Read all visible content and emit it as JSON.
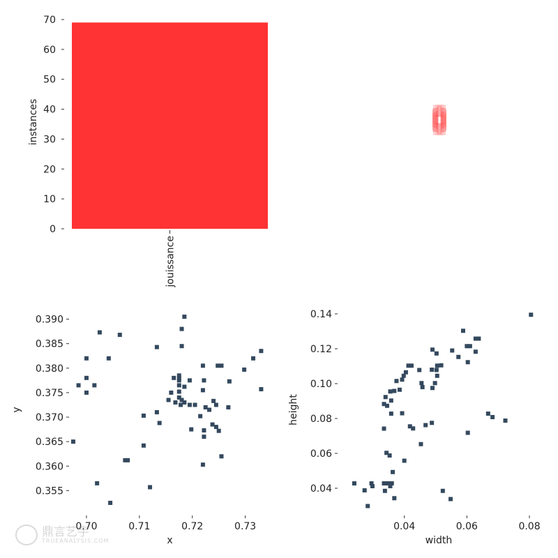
{
  "chart_data": [
    {
      "type": "bar",
      "categories": [
        "jouissance"
      ],
      "values": [
        69
      ],
      "xlabel": "",
      "ylabel": "instances",
      "ylim": [
        0,
        70
      ],
      "yticks": [
        "0",
        "10",
        "20",
        "30",
        "40",
        "50",
        "60",
        "70"
      ],
      "color": "#ff3333",
      "grid": false
    },
    {
      "type": "scatter",
      "description": "overlay of label bounding boxes (centered)",
      "box_count": 69,
      "color": "#ff3333",
      "grid": false
    },
    {
      "type": "heatmap",
      "xlabel": "x",
      "ylabel": "y",
      "xlim": [
        0.6975,
        0.734
      ],
      "ylim": [
        0.3505,
        0.3925
      ],
      "xticks": [
        "0.70",
        "0.71",
        "0.72",
        "0.73"
      ],
      "yticks": [
        "0.355",
        "0.360",
        "0.365",
        "0.370",
        "0.375",
        "0.380",
        "0.385",
        "0.390"
      ],
      "color": "#34495e",
      "points": [
        [
          0.7185,
          0.3905
        ],
        [
          0.718,
          0.388
        ],
        [
          0.7025,
          0.3873
        ],
        [
          0.7063,
          0.3868
        ],
        [
          0.718,
          0.3845
        ],
        [
          0.7133,
          0.3843
        ],
        [
          0.733,
          0.3835
        ],
        [
          0.7,
          0.382
        ],
        [
          0.7042,
          0.382
        ],
        [
          0.7315,
          0.382
        ],
        [
          0.722,
          0.3805
        ],
        [
          0.7248,
          0.3805
        ],
        [
          0.7255,
          0.3805
        ],
        [
          0.7298,
          0.3797
        ],
        [
          0.7175,
          0.3785
        ],
        [
          0.7175,
          0.378
        ],
        [
          0.7165,
          0.378
        ],
        [
          0.7175,
          0.3775
        ],
        [
          0.7222,
          0.3775
        ],
        [
          0.7195,
          0.3775
        ],
        [
          0.7,
          0.378
        ],
        [
          0.727,
          0.3773
        ],
        [
          0.6985,
          0.3765
        ],
        [
          0.7015,
          0.3765
        ],
        [
          0.7175,
          0.3765
        ],
        [
          0.7185,
          0.3762
        ],
        [
          0.722,
          0.3755
        ],
        [
          0.7175,
          0.3752
        ],
        [
          0.7,
          0.375
        ],
        [
          0.733,
          0.3757
        ],
        [
          0.716,
          0.375
        ],
        [
          0.7175,
          0.374
        ],
        [
          0.718,
          0.3735
        ],
        [
          0.7168,
          0.373
        ],
        [
          0.7185,
          0.373
        ],
        [
          0.724,
          0.3733
        ],
        [
          0.7155,
          0.3735
        ],
        [
          0.7178,
          0.3725
        ],
        [
          0.7195,
          0.3725
        ],
        [
          0.7205,
          0.3725
        ],
        [
          0.7245,
          0.3725
        ],
        [
          0.7225,
          0.372
        ],
        [
          0.7268,
          0.372
        ],
        [
          0.7232,
          0.3715
        ],
        [
          0.7133,
          0.371
        ],
        [
          0.7108,
          0.3703
        ],
        [
          0.7215,
          0.3702
        ],
        [
          0.7138,
          0.3688
        ],
        [
          0.7238,
          0.3685
        ],
        [
          0.7245,
          0.368
        ],
        [
          0.7198,
          0.3675
        ],
        [
          0.7222,
          0.3673
        ],
        [
          0.725,
          0.3672
        ],
        [
          0.7222,
          0.366
        ],
        [
          0.6975,
          0.365
        ],
        [
          0.7108,
          0.3642
        ],
        [
          0.7073,
          0.3612
        ],
        [
          0.7078,
          0.3612
        ],
        [
          0.7255,
          0.362
        ],
        [
          0.722,
          0.3603
        ],
        [
          0.702,
          0.3565
        ],
        [
          0.712,
          0.3557
        ],
        [
          0.7045,
          0.3525
        ]
      ]
    },
    {
      "type": "heatmap",
      "xlabel": "width",
      "ylabel": "height",
      "xlim": [
        0.02,
        0.082
      ],
      "ylim": [
        0.026,
        0.144
      ],
      "xticks": [
        "0.04",
        "0.06",
        "0.08"
      ],
      "yticks": [
        "0.04",
        "0.06",
        "0.08",
        "0.10",
        "0.12",
        "0.14"
      ],
      "color": "#34495e",
      "points": [
        [
          0.0805,
          0.1395
        ],
        [
          0.0588,
          0.1303
        ],
        [
          0.0628,
          0.1258
        ],
        [
          0.0638,
          0.1258
        ],
        [
          0.061,
          0.1215
        ],
        [
          0.06,
          0.1215
        ],
        [
          0.0628,
          0.1183
        ],
        [
          0.0553,
          0.119
        ],
        [
          0.049,
          0.1195
        ],
        [
          0.0503,
          0.1173
        ],
        [
          0.0573,
          0.1153
        ],
        [
          0.0603,
          0.1123
        ],
        [
          0.0518,
          0.1105
        ],
        [
          0.0505,
          0.1103
        ],
        [
          0.0423,
          0.1103
        ],
        [
          0.0413,
          0.1103
        ],
        [
          0.0448,
          0.1078
        ],
        [
          0.0488,
          0.108
        ],
        [
          0.0503,
          0.1078
        ],
        [
          0.0405,
          0.1065
        ],
        [
          0.0398,
          0.1045
        ],
        [
          0.0505,
          0.1045
        ],
        [
          0.0393,
          0.1023
        ],
        [
          0.0375,
          0.1015
        ],
        [
          0.0455,
          0.1003
        ],
        [
          0.0498,
          0.1003
        ],
        [
          0.0458,
          0.098
        ],
        [
          0.049,
          0.0975
        ],
        [
          0.0368,
          0.0958
        ],
        [
          0.0385,
          0.0965
        ],
        [
          0.0355,
          0.0955
        ],
        [
          0.034,
          0.0923
        ],
        [
          0.0358,
          0.0903
        ],
        [
          0.0335,
          0.0883
        ],
        [
          0.0345,
          0.0873
        ],
        [
          0.0393,
          0.083
        ],
        [
          0.0358,
          0.0828
        ],
        [
          0.0668,
          0.0828
        ],
        [
          0.0682,
          0.0808
        ],
        [
          0.0723,
          0.0788
        ],
        [
          0.0488,
          0.0775
        ],
        [
          0.0468,
          0.0762
        ],
        [
          0.0418,
          0.0755
        ],
        [
          0.0428,
          0.0743
        ],
        [
          0.0335,
          0.0742
        ],
        [
          0.0603,
          0.0718
        ],
        [
          0.0453,
          0.0653
        ],
        [
          0.0343,
          0.0603
        ],
        [
          0.0353,
          0.0588
        ],
        [
          0.04,
          0.0558
        ],
        [
          0.0363,
          0.0493
        ],
        [
          0.024,
          0.0428
        ],
        [
          0.0295,
          0.0428
        ],
        [
          0.0298,
          0.0412
        ],
        [
          0.0335,
          0.0428
        ],
        [
          0.0348,
          0.0428
        ],
        [
          0.0355,
          0.0412
        ],
        [
          0.036,
          0.0428
        ],
        [
          0.0273,
          0.0388
        ],
        [
          0.0338,
          0.0385
        ],
        [
          0.0523,
          0.0385
        ],
        [
          0.0368,
          0.0343
        ],
        [
          0.0548,
          0.0338
        ],
        [
          0.0283,
          0.0298
        ]
      ]
    }
  ],
  "watermark": {
    "line1": "鼎言艺宇",
    "line2": "TRUEANALYSIS.COM"
  }
}
